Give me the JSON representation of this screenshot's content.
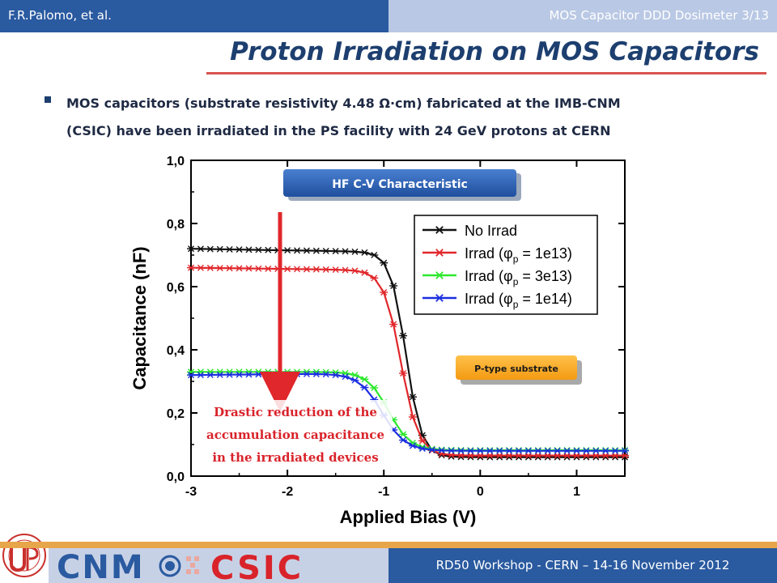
{
  "header": {
    "author": "F.R.Palomo, et al.",
    "topic": "MOS Capacitor DDD Dosimeter 3/13"
  },
  "slide": {
    "title": "Proton Irradiation on MOS Capacitors",
    "bullet_line1": "MOS capacitors (substrate resistivity 4.48 Ω·cm) fabricated at the IMB-CNM",
    "bullet_line2": "(CSIC) have been irradiated in the PS facility with 24 GeV protons at CERN"
  },
  "footer": {
    "event": "RD50 Workshop - CERN – 14-16 November 2012",
    "logo_text_1": "CNM",
    "logo_text_2": "CSIC"
  },
  "colors": {
    "black": "#111111",
    "red": "#e0272b",
    "green": "#2ee82e",
    "blue": "#1c2fe0"
  },
  "chart_data": {
    "type": "line",
    "xlabel": "Applied Bias (V)",
    "ylabel": "Capacitance (nF)",
    "xlim": [
      -3,
      1.5
    ],
    "ylim": [
      0.0,
      1.0
    ],
    "xticks": [
      "-3",
      "-2",
      "-1",
      "0",
      "1"
    ],
    "yticks": [
      "0,0",
      "0,2",
      "0,4",
      "0,6",
      "0,8",
      "1,0"
    ],
    "grid": false,
    "legend_position": "top-right",
    "annotations": {
      "cv_box": "HF C-V Characteristic",
      "substrate_box": "P-type substrate",
      "note_1": "Drastic reduction of the",
      "note_2": "accumulation capacitance",
      "note_3": "in the irradiated devices"
    },
    "series": [
      {
        "name": "No Irrad",
        "legend_prefix": "No Irrad",
        "legend_suffix": "",
        "marker": "asterisk",
        "high": 0.72,
        "low": 0.06,
        "mid": -0.77,
        "width": 0.08,
        "droop": 0.005
      },
      {
        "name": "Irrad (φp = 1e13)",
        "legend_prefix": "Irrad (",
        "legend_suffix": " = 1e13)",
        "marker": "asterisk",
        "high": 0.66,
        "low": 0.065,
        "mid": -0.82,
        "width": 0.09,
        "droop": 0.004
      },
      {
        "name": "Irrad (φp = 3e13)",
        "legend_prefix": "Irrad (",
        "legend_suffix": " = 3e13)",
        "marker": "asterisk",
        "high": 0.33,
        "low": 0.082,
        "mid": -0.95,
        "width": 0.11,
        "droop": 0.0
      },
      {
        "name": "Irrad (φp = 1e14)",
        "legend_prefix": "Irrad (",
        "legend_suffix": " = 1e14)",
        "marker": "asterisk",
        "high": 0.32,
        "low": 0.08,
        "mid": -1.02,
        "width": 0.12,
        "droop": -0.003
      }
    ],
    "phi_symbol": "φ",
    "phi_sub": "p"
  }
}
